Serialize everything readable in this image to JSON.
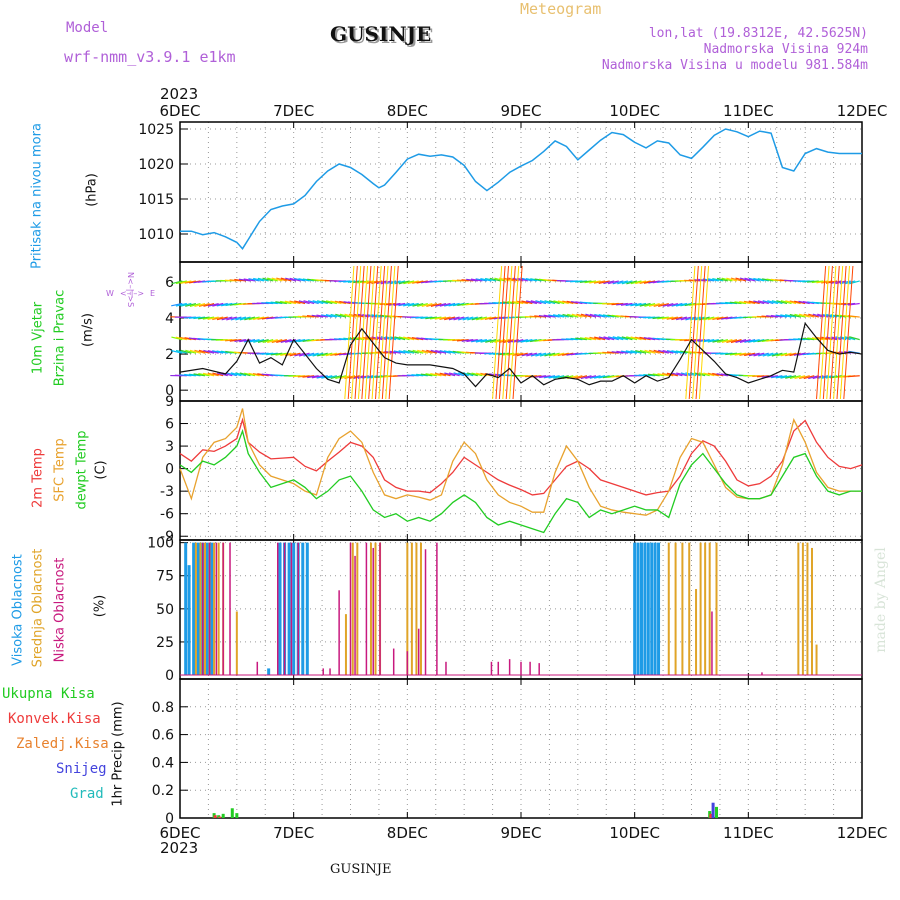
{
  "header": {
    "model_label": "Model",
    "model_name": "wrf-nmm_v3.9.1 e1km",
    "station": "GUSINJE",
    "meteogram": "Meteogram",
    "lonlat": "lon,lat (19.8312E, 42.5625N)",
    "altitude": "Nadmorska Visina 924m",
    "model_altitude": "Nadmorska Visina u modelu 981.584m",
    "footer_station": "GUSINJE",
    "watermark": "made by Angel"
  },
  "time_axis": {
    "year": "2023",
    "ticks": [
      "6DEC",
      "7DEC",
      "8DEC",
      "9DEC",
      "10DEC",
      "11DEC",
      "12DEC"
    ]
  },
  "legend": {
    "precip": {
      "total": "Ukupna Kisa",
      "convective": "Konvek.Kisa",
      "freezing": "Zaledj.Kisa",
      "snow": "Snijeg",
      "hail": "Grad"
    },
    "wind_compass": [
      "W",
      "E",
      "N",
      "S"
    ]
  },
  "colors": {
    "pressure": "#1e9be6",
    "temp2m": "#ee3b3b",
    "sfc": "#e8a22e",
    "dew": "#22cc22",
    "high_cloud": "#1e9be6",
    "mid_cloud": "#e0a428",
    "low_cloud": "#c8197e",
    "snow": "#4444dd",
    "total_precip": "#22cc22",
    "conv_precip": "#ee3b3b",
    "grad": "#22bbbb"
  },
  "chart_data": [
    {
      "type": "line",
      "title": "",
      "ylabel": "(hPa)",
      "ylabel_desc": "Pritisak na nivou mora",
      "xlim": [
        0,
        6
      ],
      "ylim": [
        1006,
        1026
      ],
      "yticks": [
        1010,
        1015,
        1020,
        1025
      ],
      "grid": true,
      "series": [
        {
          "x": [
            0,
            0.1,
            0.2,
            0.3,
            0.4,
            0.5,
            0.55,
            0.6,
            0.7,
            0.8,
            0.9,
            1.0,
            1.1,
            1.2,
            1.3,
            1.4,
            1.5,
            1.6,
            1.7,
            1.75,
            1.8,
            1.9,
            2.0,
            2.1,
            2.2,
            2.3,
            2.4,
            2.5,
            2.6,
            2.7,
            2.8,
            2.9,
            3.0,
            3.1,
            3.2,
            3.3,
            3.4,
            3.5,
            3.6,
            3.7,
            3.8,
            3.9,
            4.0,
            4.1,
            4.2,
            4.3,
            4.4,
            4.5,
            4.6,
            4.7,
            4.8,
            4.9,
            5.0,
            5.1,
            5.2,
            5.3,
            5.4,
            5.5,
            5.6,
            5.7,
            5.8,
            5.9,
            6.0
          ],
          "values": [
            1010.4,
            1010.4,
            1009.9,
            1010.2,
            1009.6,
            1008.8,
            1007.9,
            1009.2,
            1011.8,
            1013.5,
            1014.0,
            1014.3,
            1015.5,
            1017.5,
            1019.0,
            1020.0,
            1019.5,
            1018.5,
            1017.2,
            1016.6,
            1017.0,
            1018.8,
            1020.7,
            1021.4,
            1021.1,
            1021.3,
            1021.0,
            1019.8,
            1017.5,
            1016.2,
            1017.4,
            1018.8,
            1019.7,
            1020.5,
            1021.8,
            1023.3,
            1022.5,
            1020.6,
            1022.0,
            1023.4,
            1024.5,
            1024.2,
            1023.1,
            1022.3,
            1023.3,
            1023.0,
            1021.3,
            1020.8,
            1022.4,
            1024.1,
            1025.0,
            1024.6,
            1023.9,
            1024.7,
            1024.4,
            1019.5,
            1019.0,
            1021.5,
            1022.2,
            1021.7,
            1021.5,
            1021.5,
            1021.5
          ]
        }
      ]
    },
    {
      "type": "line",
      "title": "",
      "ylabel": "(m/s)",
      "ylabel_desc": [
        "10m Vjetar",
        "Brzina i Pravac"
      ],
      "xlim": [
        0,
        6
      ],
      "ylim": [
        -0.6,
        7.1
      ],
      "yticks": [
        0,
        2,
        4,
        6
      ],
      "grid": true,
      "series": [
        {
          "name": "",
          "x": [
            0,
            0.2,
            0.4,
            0.5,
            0.6,
            0.7,
            0.8,
            0.9,
            1.0,
            1.1,
            1.2,
            1.3,
            1.4,
            1.5,
            1.6,
            1.7,
            1.8,
            1.9,
            2.0,
            2.2,
            2.4,
            2.5,
            2.6,
            2.7,
            2.8,
            2.9,
            3.0,
            3.1,
            3.2,
            3.3,
            3.4,
            3.5,
            3.6,
            3.7,
            3.8,
            3.9,
            4.0,
            4.1,
            4.2,
            4.3,
            4.4,
            4.5,
            4.6,
            4.7,
            4.8,
            4.9,
            5.0,
            5.1,
            5.2,
            5.3,
            5.4,
            5.5,
            5.6,
            5.7,
            5.8,
            5.9,
            6.0
          ],
          "values": [
            1.0,
            1.2,
            0.9,
            1.6,
            2.8,
            1.5,
            1.8,
            1.4,
            2.8,
            2.0,
            1.2,
            0.6,
            0.4,
            2.5,
            3.4,
            2.6,
            1.8,
            1.5,
            1.4,
            1.4,
            1.2,
            0.9,
            0.2,
            0.9,
            0.7,
            1.2,
            0.4,
            0.8,
            0.3,
            0.6,
            0.7,
            0.6,
            0.3,
            0.5,
            0.5,
            0.8,
            0.4,
            0.8,
            0.5,
            0.7,
            1.7,
            2.8,
            2.2,
            1.6,
            0.9,
            0.7,
            0.4,
            0.6,
            0.8,
            1.1,
            1.0,
            3.7,
            2.9,
            2.2,
            2.0,
            2.1,
            2.0
          ]
        }
      ]
    },
    {
      "type": "line",
      "title": "",
      "ylabel": "(C)",
      "ylabel_desc": [
        "2m Temp",
        "SFC Temp",
        "dewpt Temp"
      ],
      "xlim": [
        0,
        6
      ],
      "ylim": [
        -9.5,
        9
      ],
      "yticks": [
        -9,
        -6,
        -3,
        0,
        3,
        6,
        9
      ],
      "grid": true,
      "series": [
        {
          "name": "2m Temp",
          "x": [
            0,
            0.1,
            0.2,
            0.3,
            0.4,
            0.5,
            0.55,
            0.6,
            0.7,
            0.8,
            0.9,
            1.0,
            1.1,
            1.2,
            1.3,
            1.4,
            1.5,
            1.6,
            1.7,
            1.8,
            1.9,
            2.0,
            2.1,
            2.2,
            2.3,
            2.4,
            2.5,
            2.6,
            2.7,
            2.8,
            2.9,
            3.0,
            3.1,
            3.2,
            3.3,
            3.4,
            3.5,
            3.6,
            3.7,
            3.8,
            3.9,
            4.0,
            4.1,
            4.2,
            4.3,
            4.4,
            4.5,
            4.6,
            4.7,
            4.8,
            4.9,
            5.0,
            5.1,
            5.2,
            5.3,
            5.4,
            5.5,
            5.6,
            5.7,
            5.8,
            5.9,
            6.0
          ],
          "values": [
            2.0,
            1.0,
            2.5,
            2.3,
            3.0,
            4.0,
            6.5,
            3.5,
            2.2,
            1.3,
            1.4,
            1.5,
            0.3,
            -0.3,
            1.0,
            2.2,
            3.5,
            3.0,
            1.5,
            -1.5,
            -2.5,
            -3.0,
            -3.0,
            -3.2,
            -2.0,
            -0.5,
            1.5,
            0.5,
            -0.5,
            -1.5,
            -2.2,
            -2.8,
            -3.5,
            -3.3,
            -1.5,
            0.3,
            1.0,
            0.0,
            -1.5,
            -2.0,
            -2.5,
            -3.0,
            -3.5,
            -3.2,
            -3.0,
            -1.0,
            2.0,
            3.7,
            3.0,
            1.0,
            -1.5,
            -2.3,
            -2.0,
            -1.0,
            1.0,
            5.0,
            6.4,
            3.5,
            1.5,
            0.3,
            0.0,
            0.5
          ]
        },
        {
          "name": "SFC Temp",
          "x": [
            0,
            0.1,
            0.2,
            0.3,
            0.4,
            0.5,
            0.55,
            0.6,
            0.7,
            0.8,
            0.9,
            1.0,
            1.1,
            1.2,
            1.3,
            1.4,
            1.5,
            1.6,
            1.7,
            1.8,
            1.9,
            2.0,
            2.1,
            2.2,
            2.3,
            2.4,
            2.5,
            2.6,
            2.7,
            2.8,
            2.9,
            3.0,
            3.1,
            3.2,
            3.3,
            3.4,
            3.5,
            3.6,
            3.7,
            3.8,
            3.9,
            4.0,
            4.1,
            4.2,
            4.3,
            4.4,
            4.5,
            4.6,
            4.7,
            4.8,
            4.9,
            5.0,
            5.1,
            5.2,
            5.3,
            5.4,
            5.5,
            5.6,
            5.7,
            5.8,
            5.9,
            6.0
          ],
          "values": [
            0.0,
            -4.0,
            1.5,
            3.5,
            4.0,
            5.5,
            8.0,
            3.5,
            0.5,
            -1.0,
            -1.5,
            -2.0,
            -3.0,
            -3.5,
            1.5,
            4.0,
            5.0,
            3.5,
            -0.5,
            -3.5,
            -4.0,
            -3.5,
            -3.8,
            -4.2,
            -3.5,
            1.0,
            3.5,
            2.0,
            -1.5,
            -3.5,
            -4.5,
            -5.0,
            -5.8,
            -5.8,
            -0.5,
            3.0,
            1.0,
            -2.5,
            -5.0,
            -5.5,
            -5.8,
            -6.0,
            -6.2,
            -5.5,
            -3.0,
            1.5,
            4.0,
            3.5,
            0.5,
            -2.5,
            -3.8,
            -4.0,
            -4.0,
            -3.5,
            0.5,
            6.5,
            3.5,
            -0.5,
            -2.5,
            -3.0,
            -3.0,
            -3.0
          ]
        },
        {
          "name": "dewpt Temp",
          "x": [
            0,
            0.1,
            0.2,
            0.3,
            0.4,
            0.5,
            0.55,
            0.6,
            0.7,
            0.8,
            0.9,
            1.0,
            1.1,
            1.2,
            1.3,
            1.4,
            1.5,
            1.6,
            1.7,
            1.8,
            1.9,
            2.0,
            2.1,
            2.2,
            2.3,
            2.4,
            2.5,
            2.6,
            2.7,
            2.8,
            2.9,
            3.0,
            3.1,
            3.2,
            3.3,
            3.4,
            3.5,
            3.6,
            3.7,
            3.8,
            3.9,
            4.0,
            4.1,
            4.2,
            4.3,
            4.4,
            4.5,
            4.6,
            4.7,
            4.8,
            4.9,
            5.0,
            5.1,
            5.2,
            5.3,
            5.4,
            5.5,
            5.6,
            5.7,
            5.8,
            5.9,
            6.0
          ],
          "values": [
            0.5,
            -0.5,
            1.0,
            0.5,
            1.5,
            3.0,
            5.0,
            2.0,
            -0.5,
            -2.5,
            -2.0,
            -1.5,
            -2.5,
            -4.0,
            -3.0,
            -1.5,
            -1.0,
            -3.0,
            -5.5,
            -6.5,
            -6.0,
            -7.0,
            -6.5,
            -7.0,
            -6.0,
            -4.5,
            -3.5,
            -4.5,
            -6.5,
            -7.5,
            -7.0,
            -7.5,
            -8.0,
            -8.5,
            -6.0,
            -4.0,
            -4.5,
            -6.5,
            -5.5,
            -6.0,
            -5.5,
            -5.0,
            -5.5,
            -5.5,
            -6.5,
            -2.0,
            0.5,
            2.0,
            0.0,
            -2.0,
            -3.5,
            -4.0,
            -4.0,
            -3.5,
            -1.0,
            1.5,
            2.0,
            -1.0,
            -3.0,
            -3.5,
            -3.0,
            -3.0
          ]
        }
      ]
    },
    {
      "type": "bar",
      "title": "",
      "ylabel": "(%)",
      "ylabel_desc": [
        "Visoka Oblacnost",
        "Srednja Oblacnost",
        "Niska Oblacnost"
      ],
      "xlim": [
        0,
        6
      ],
      "ylim": [
        -3,
        102
      ],
      "yticks": [
        0,
        25,
        50,
        75,
        100
      ],
      "grid": true,
      "series": [
        {
          "name": "Visoka Oblacnost",
          "x": [
            0.05,
            0.08,
            0.12,
            0.16,
            0.2,
            0.24,
            0.28,
            0.78,
            0.88,
            0.92,
            0.96,
            1.0,
            1.04,
            1.08,
            1.12,
            4.0,
            4.03,
            4.06,
            4.09,
            4.12,
            4.15,
            4.18,
            4.21
          ],
          "values": [
            100,
            83,
            100,
            100,
            100,
            100,
            100,
            5,
            100,
            100,
            100,
            100,
            100,
            100,
            100,
            100,
            100,
            100,
            100,
            100,
            100,
            100,
            100
          ]
        },
        {
          "name": "Srednja Oblacnost",
          "x": [
            0.14,
            0.18,
            0.22,
            0.26,
            0.3,
            0.34,
            0.38,
            0.5,
            1.46,
            1.52,
            1.56,
            1.68,
            1.72,
            1.76,
            2.0,
            2.04,
            2.08,
            2.12,
            4.3,
            4.36,
            4.42,
            4.48,
            4.54,
            4.58,
            4.62,
            4.66,
            4.72,
            5.44,
            5.48,
            5.52,
            5.56,
            5.6
          ],
          "values": [
            100,
            100,
            100,
            100,
            100,
            100,
            100,
            48,
            46,
            100,
            100,
            100,
            100,
            100,
            100,
            100,
            100,
            100,
            100,
            100,
            100,
            100,
            65,
            100,
            100,
            100,
            100,
            100,
            100,
            100,
            96,
            23
          ]
        },
        {
          "name": "Niska Oblacnost",
          "x": [
            0.2,
            0.26,
            0.32,
            0.38,
            0.44,
            0.68,
            0.86,
            0.92,
            0.98,
            1.04,
            1.26,
            1.32,
            1.4,
            1.5,
            1.54,
            1.64,
            1.7,
            1.76,
            1.88,
            2.0,
            2.1,
            2.16,
            2.26,
            2.34,
            2.74,
            2.8,
            2.9,
            3.0,
            3.08,
            3.16,
            4.68,
            5.12
          ],
          "values": [
            100,
            100,
            100,
            100,
            100,
            10,
            100,
            100,
            100,
            100,
            5,
            5,
            64,
            100,
            90,
            100,
            96,
            100,
            20,
            18,
            35,
            95,
            100,
            10,
            10,
            10,
            12,
            10,
            10,
            9,
            48,
            2
          ]
        }
      ]
    },
    {
      "type": "bar",
      "title": "",
      "ylabel": "1hr Precip (mm)",
      "xlim": [
        0,
        6
      ],
      "ylim": [
        0,
        1.0
      ],
      "yticks": [
        0,
        0.2,
        0.4,
        0.6,
        0.8
      ],
      "grid": true,
      "series": [
        {
          "name": "Ukupna Kisa",
          "x": [
            0.3,
            0.34,
            0.38,
            0.46,
            0.5,
            4.66,
            4.72
          ],
          "values": [
            0.035,
            0.02,
            0.03,
            0.07,
            0.035,
            0.05,
            0.08
          ]
        },
        {
          "name": "Konvek.Kisa",
          "x": [
            0.31,
            0.35,
            4.67
          ],
          "values": [
            0.02,
            0.01,
            0.03
          ]
        },
        {
          "name": "Snijeg",
          "x": [
            4.69
          ],
          "values": [
            0.11
          ]
        }
      ]
    }
  ]
}
